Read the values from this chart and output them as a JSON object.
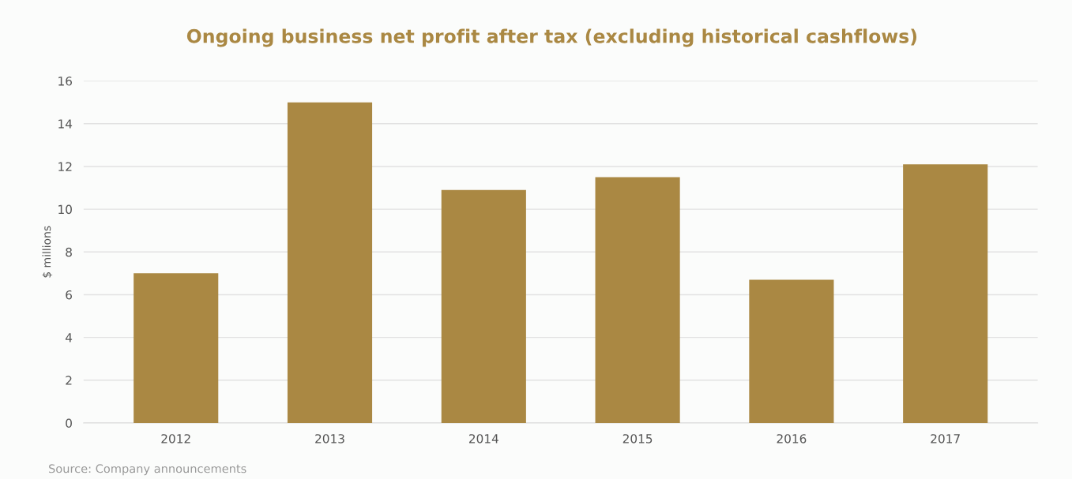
{
  "chart_data": {
    "type": "bar",
    "title": "Ongoing business net profit after tax (excluding historical cashflows)",
    "ylabel": "$ millions",
    "categories": [
      "2012",
      "2013",
      "2014",
      "2015",
      "2016",
      "2017"
    ],
    "values": [
      7.0,
      15.0,
      10.9,
      11.5,
      6.7,
      12.1
    ],
    "color": "#aa8843",
    "ylim": [
      0,
      16
    ],
    "yticks": [
      0,
      2,
      4,
      6,
      8,
      10,
      12,
      14,
      16
    ],
    "grid": "y",
    "annotations": [
      "Source: Company announcements"
    ]
  }
}
